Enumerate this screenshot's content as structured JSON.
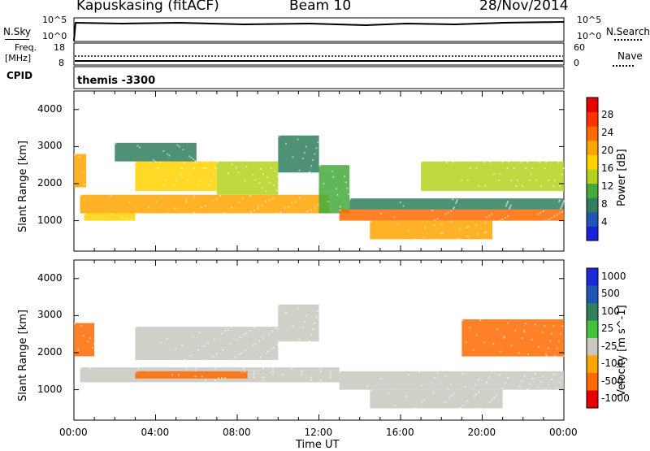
{
  "header": {
    "station": "Kapuskasing (fitACF)",
    "beam": "Beam 10",
    "date": "28/Nov/2014"
  },
  "strip_labels": {
    "nsky": "N.Sky",
    "nsky_ticks": [
      "10^5",
      "10^0"
    ],
    "nsearch": "N.Search",
    "nsearch_ticks": [
      "10^5",
      "10^0"
    ],
    "freq_line1": "Freq.",
    "freq_line2": "[MHz]",
    "freq_ticks": [
      "18",
      "8"
    ],
    "nave": "Nave",
    "nave_ticks": [
      "60",
      "0"
    ],
    "cpid": "CPID",
    "cpid_value": "themis -3300"
  },
  "chart_data": [
    {
      "type": "heatmap",
      "title": "",
      "ylabel": "Slant Range [km]",
      "xlabel": "",
      "xlim": [
        "00:00",
        "24:00"
      ],
      "ylim": [
        180,
        4500
      ],
      "y_ticks": [
        "1000",
        "2000",
        "3000",
        "4000"
      ],
      "colorbar": {
        "label": "Power [dB]",
        "ticks": [
          "4",
          "8",
          "12",
          "16",
          "20",
          "24",
          "28"
        ],
        "colors": [
          "#1a22d8",
          "#1f56b4",
          "#2f7e5c",
          "#45a93c",
          "#b3d11f",
          "#ffd200",
          "#ffa500",
          "#ff6a00",
          "#ff3300",
          "#e60000"
        ]
      },
      "bands": [
        {
          "start_h": 0.0,
          "end_h": 0.6,
          "range_km": [
            1900,
            2800
          ],
          "level_db": 20
        },
        {
          "start_h": 0.3,
          "end_h": 12.5,
          "range_km": [
            1200,
            1700
          ],
          "level_db": 22
        },
        {
          "start_h": 0.5,
          "end_h": 3.0,
          "range_km": [
            1000,
            1200
          ],
          "level_db": 18
        },
        {
          "start_h": 3.0,
          "end_h": 7.0,
          "range_km": [
            1800,
            2600
          ],
          "level_db": 16
        },
        {
          "start_h": 7.0,
          "end_h": 10.0,
          "range_km": [
            1700,
            2600
          ],
          "level_db": 14
        },
        {
          "start_h": 2.0,
          "end_h": 6.0,
          "range_km": [
            2600,
            3100
          ],
          "level_db": 8
        },
        {
          "start_h": 10.0,
          "end_h": 12.0,
          "range_km": [
            2300,
            3300
          ],
          "level_db": 8
        },
        {
          "start_h": 12.0,
          "end_h": 13.5,
          "range_km": [
            1200,
            2500
          ],
          "level_db": 10
        },
        {
          "start_h": 13.5,
          "end_h": 24.0,
          "range_km": [
            1300,
            1600
          ],
          "level_db": 8
        },
        {
          "start_h": 13.0,
          "end_h": 24.0,
          "range_km": [
            1000,
            1300
          ],
          "level_db": 24
        },
        {
          "start_h": 14.5,
          "end_h": 20.5,
          "range_km": [
            500,
            1000
          ],
          "level_db": 20
        },
        {
          "start_h": 17.0,
          "end_h": 24.0,
          "range_km": [
            1800,
            2600
          ],
          "level_db": 14
        }
      ]
    },
    {
      "type": "heatmap",
      "title": "",
      "ylabel": "Slant Range [km]",
      "xlabel": "Time UT",
      "xlim": [
        "00:00",
        "24:00"
      ],
      "ylim": [
        180,
        4500
      ],
      "x_ticks": [
        "00:00",
        "04:00",
        "08:00",
        "12:00",
        "16:00",
        "20:00",
        "00:00"
      ],
      "y_ticks": [
        "1000",
        "2000",
        "3000",
        "4000"
      ],
      "colorbar": {
        "label": "Velocity [m s^-1]",
        "ticks": [
          "1000",
          "500",
          "100",
          "25",
          "-25",
          "-100",
          "-500",
          "-1000"
        ],
        "colors": [
          "#1a2ad8",
          "#1f56b4",
          "#2f7e5c",
          "#45c23c",
          "#c8c8c0",
          "#ffa500",
          "#ff6a00",
          "#e60000"
        ]
      },
      "bands": [
        {
          "start_h": 0.0,
          "end_h": 1.0,
          "range_km": [
            1900,
            2800
          ],
          "velocity_ms": -300
        },
        {
          "start_h": 0.3,
          "end_h": 13.0,
          "range_km": [
            1200,
            1600
          ],
          "velocity_ms": 0
        },
        {
          "start_h": 3.0,
          "end_h": 8.5,
          "range_km": [
            1300,
            1500
          ],
          "velocity_ms": -150
        },
        {
          "start_h": 3.0,
          "end_h": 10.0,
          "range_km": [
            1800,
            2700
          ],
          "velocity_ms": 0
        },
        {
          "start_h": 10.0,
          "end_h": 12.0,
          "range_km": [
            2300,
            3300
          ],
          "velocity_ms": 0
        },
        {
          "start_h": 13.0,
          "end_h": 24.0,
          "range_km": [
            1000,
            1500
          ],
          "velocity_ms": 0
        },
        {
          "start_h": 14.5,
          "end_h": 21.0,
          "range_km": [
            500,
            1000
          ],
          "velocity_ms": 0
        },
        {
          "start_h": 19.0,
          "end_h": 24.0,
          "range_km": [
            1900,
            2900
          ],
          "velocity_ms": -200
        }
      ]
    }
  ]
}
